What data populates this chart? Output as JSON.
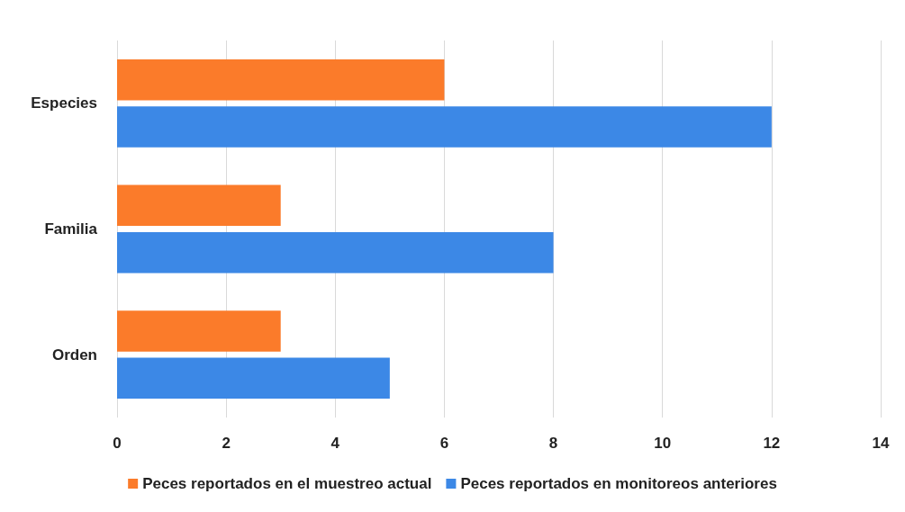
{
  "chart_data": {
    "type": "bar",
    "orientation": "horizontal",
    "categories": [
      "Especies",
      "Familia",
      "Orden"
    ],
    "series": [
      {
        "name": "Peces reportados en el muestreo actual",
        "color": "#fb7b2a",
        "values": [
          6,
          3,
          3
        ]
      },
      {
        "name": "Peces reportados en monitoreos anteriores",
        "color": "#3c88e6",
        "values": [
          12,
          8,
          5
        ]
      }
    ],
    "xlim": [
      0,
      14
    ],
    "xticks": [
      0,
      2,
      4,
      6,
      8,
      10,
      12,
      14
    ],
    "grid": "x",
    "legend": "bottom"
  }
}
